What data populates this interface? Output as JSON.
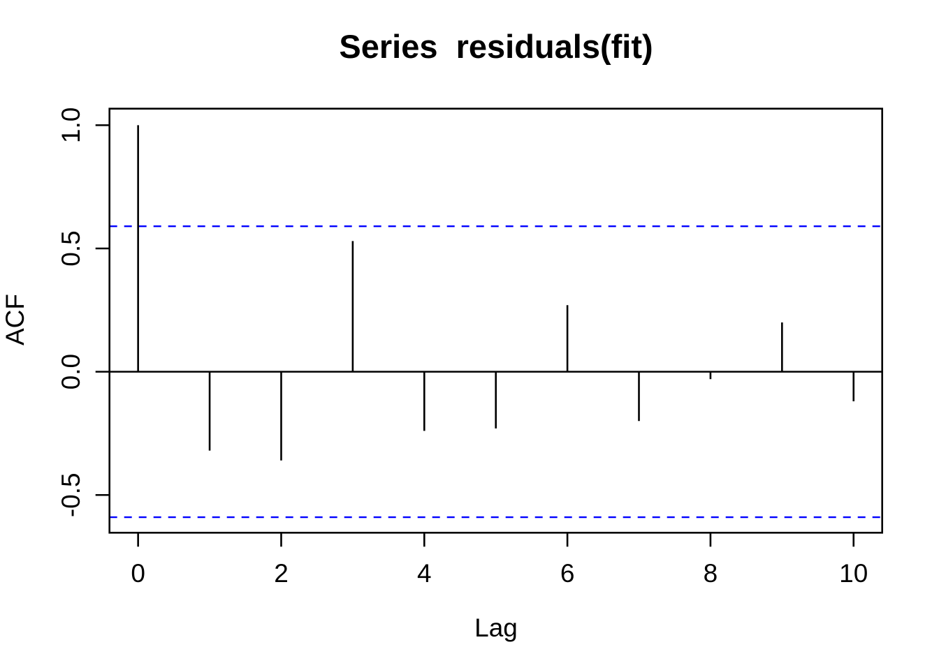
{
  "chart_data": {
    "type": "bar",
    "variant": "acf-stem-plot",
    "title": "Series  residuals(fit)",
    "xlabel": "Lag",
    "ylabel": "ACF",
    "x": [
      0,
      1,
      2,
      3,
      4,
      5,
      6,
      7,
      8,
      9,
      10
    ],
    "values": [
      1.0,
      -0.32,
      -0.36,
      0.53,
      -0.24,
      -0.23,
      0.27,
      -0.2,
      -0.03,
      0.2,
      -0.12
    ],
    "confidence_bounds": {
      "upper": 0.59,
      "lower": -0.59,
      "line_style": "dashed",
      "color": "#0000ff"
    },
    "xlim": [
      -0.4,
      10.4
    ],
    "ylim": [
      -0.653,
      1.067
    ],
    "x_ticks": [
      {
        "value": 0,
        "label": "0"
      },
      {
        "value": 2,
        "label": "2"
      },
      {
        "value": 4,
        "label": "4"
      },
      {
        "value": 6,
        "label": "6"
      },
      {
        "value": 8,
        "label": "8"
      },
      {
        "value": 10,
        "label": "10"
      }
    ],
    "y_ticks": [
      {
        "value": 1.0,
        "label": "1.0"
      },
      {
        "value": 0.5,
        "label": "0.5"
      },
      {
        "value": 0.0,
        "label": "0.0"
      },
      {
        "value": -0.5,
        "label": "-0.5"
      }
    ],
    "grid": false,
    "legend": null,
    "colors": {
      "spike": "#000000",
      "axis": "#000000",
      "confidence": "#0000ff",
      "background": "#ffffff"
    }
  }
}
